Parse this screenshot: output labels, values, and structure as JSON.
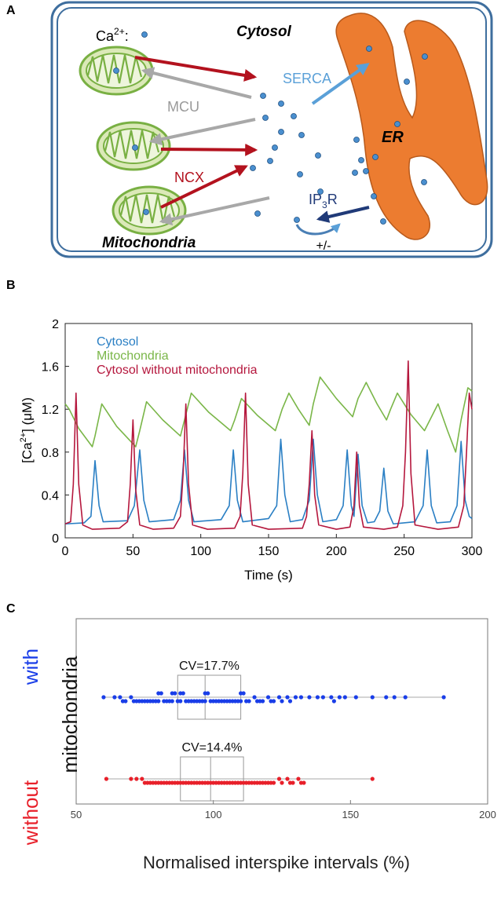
{
  "panel_labels": [
    "A",
    "B",
    "C"
  ],
  "diagram": {
    "cytosol": "Cytosol",
    "calcium_key": {
      "base": "Ca",
      "sup": "2+",
      "tail": ":"
    },
    "serca": "SERCA",
    "mcu": "MCU",
    "ncx": "NCX",
    "er": "ER",
    "ip3r": {
      "base": "IP",
      "sub": "3",
      "tail": "R"
    },
    "mitochondria": "Mitochondria",
    "modulation": "+/-"
  },
  "chart_data": [
    {
      "type": "line",
      "xlabel": "Time (s)",
      "ylabel": {
        "pre": "[Ca",
        "sup": "2+",
        "post": "] (μM)"
      },
      "xlim": [
        0,
        300
      ],
      "xticks": [
        0,
        50,
        100,
        150,
        200,
        250,
        300
      ],
      "ylim": [
        0,
        2
      ],
      "yticks": [
        0,
        0.4,
        0.8,
        1.2,
        1.6,
        2
      ],
      "legend": "upper left",
      "series": [
        {
          "name": "Cytosol",
          "color": "#2a7fc4",
          "x": [
            0,
            14,
            19,
            22,
            25,
            28,
            46,
            51,
            55,
            58,
            62,
            80,
            85,
            88,
            91,
            95,
            115,
            121,
            124,
            127,
            131,
            150,
            156,
            159,
            162,
            166,
            175,
            180,
            183,
            186,
            190,
            200,
            205,
            208,
            211,
            213,
            216,
            219,
            223,
            228,
            232,
            235,
            238,
            242,
            258,
            264,
            267,
            270,
            274,
            284,
            289,
            292,
            295,
            298,
            300
          ],
          "values": [
            0.13,
            0.14,
            0.2,
            0.72,
            0.3,
            0.15,
            0.16,
            0.3,
            0.82,
            0.35,
            0.15,
            0.17,
            0.35,
            0.82,
            0.35,
            0.15,
            0.17,
            0.3,
            0.82,
            0.35,
            0.15,
            0.18,
            0.3,
            0.92,
            0.4,
            0.15,
            0.17,
            0.35,
            0.92,
            0.4,
            0.15,
            0.17,
            0.3,
            0.82,
            0.3,
            0.2,
            0.78,
            0.3,
            0.14,
            0.15,
            0.25,
            0.65,
            0.25,
            0.13,
            0.15,
            0.3,
            0.82,
            0.3,
            0.14,
            0.15,
            0.3,
            0.9,
            0.35,
            0.2,
            0.18
          ]
        },
        {
          "name": "Mitochondria",
          "color": "#7ab648",
          "x": [
            0,
            3,
            10,
            20,
            22,
            27,
            38,
            52,
            55,
            60,
            72,
            85,
            88,
            93,
            106,
            122,
            125,
            130,
            142,
            155,
            160,
            165,
            172,
            180,
            183,
            188,
            200,
            212,
            216,
            222,
            230,
            237,
            240,
            245,
            255,
            265,
            269,
            275,
            282,
            288,
            292,
            297,
            300
          ],
          "values": [
            1.25,
            1.2,
            1.02,
            0.85,
            0.95,
            1.25,
            1.04,
            0.85,
            1.0,
            1.27,
            1.1,
            0.95,
            1.1,
            1.35,
            1.17,
            1.0,
            1.1,
            1.3,
            1.14,
            1.0,
            1.2,
            1.35,
            1.2,
            1.05,
            1.25,
            1.5,
            1.3,
            1.13,
            1.3,
            1.45,
            1.25,
            1.1,
            1.2,
            1.35,
            1.15,
            1.0,
            1.1,
            1.25,
            1.0,
            0.8,
            1.1,
            1.4,
            1.37
          ]
        },
        {
          "name": "Cytosol without mitochondria",
          "color": "#b5173d",
          "x": [
            0,
            4,
            6,
            8,
            10,
            13,
            20,
            40,
            46,
            48,
            50,
            52,
            55,
            65,
            80,
            85,
            87,
            89,
            91,
            94,
            105,
            125,
            129,
            131,
            133,
            135,
            138,
            150,
            175,
            178,
            180,
            182,
            184,
            187,
            200,
            210,
            213,
            215,
            217,
            220,
            235,
            245,
            249,
            251,
            253,
            255,
            258,
            275,
            290,
            294,
            296,
            298,
            300
          ],
          "values": [
            0.13,
            0.15,
            0.5,
            1.35,
            0.5,
            0.12,
            0.08,
            0.09,
            0.15,
            0.5,
            1.1,
            0.45,
            0.12,
            0.08,
            0.09,
            0.2,
            0.6,
            1.25,
            0.5,
            0.12,
            0.08,
            0.09,
            0.2,
            0.6,
            1.35,
            0.5,
            0.12,
            0.08,
            0.09,
            0.2,
            0.5,
            1.0,
            0.4,
            0.12,
            0.08,
            0.1,
            0.3,
            0.8,
            0.3,
            0.1,
            0.08,
            0.1,
            0.3,
            0.8,
            1.65,
            0.6,
            0.12,
            0.08,
            0.1,
            0.3,
            0.8,
            1.35,
            1.2
          ]
        }
      ]
    },
    {
      "type": "strip",
      "xlabel": "Normalised interspike intervals (%)",
      "group_label": "mitochondria",
      "xlim": [
        50,
        200
      ],
      "xticks": [
        50,
        100,
        150,
        200
      ],
      "annotations": [
        "CV=17.7%",
        "CV=14.4%"
      ],
      "series": [
        {
          "name": "with",
          "color": "#1a3ee8",
          "values": [
            60,
            64,
            66,
            67,
            68,
            70,
            71,
            72,
            73,
            74,
            75,
            76,
            77,
            78,
            79,
            80,
            80,
            81,
            82,
            83,
            84,
            85,
            85,
            86,
            87,
            88,
            88,
            89,
            90,
            91,
            92,
            93,
            94,
            95,
            96,
            97,
            97,
            98,
            99,
            100,
            101,
            102,
            103,
            104,
            105,
            106,
            107,
            108,
            109,
            110,
            110,
            111,
            112,
            113,
            115,
            116,
            117,
            118,
            120,
            121,
            122,
            124,
            125,
            127,
            128,
            130,
            132,
            135,
            138,
            140,
            143,
            144,
            146,
            148,
            152,
            158,
            163,
            166,
            170,
            184
          ],
          "box": {
            "whisker_low": 60,
            "q1": 87,
            "median": 97,
            "q3": 110,
            "whisker_high": 184
          }
        },
        {
          "name": "without",
          "color": "#e8202a",
          "values": [
            61,
            70,
            72,
            74,
            75,
            76,
            77,
            78,
            79,
            80,
            81,
            82,
            83,
            84,
            85,
            86,
            87,
            88,
            89,
            90,
            91,
            92,
            93,
            94,
            95,
            96,
            97,
            98,
            99,
            100,
            101,
            102,
            103,
            104,
            105,
            106,
            107,
            108,
            109,
            110,
            111,
            112,
            113,
            114,
            115,
            116,
            117,
            118,
            119,
            120,
            121,
            122,
            124,
            125,
            127,
            128,
            129,
            131,
            132,
            133,
            158
          ],
          "box": {
            "whisker_low": 61,
            "q1": 88,
            "median": 99,
            "q3": 111,
            "whisker_high": 158
          }
        }
      ]
    }
  ]
}
